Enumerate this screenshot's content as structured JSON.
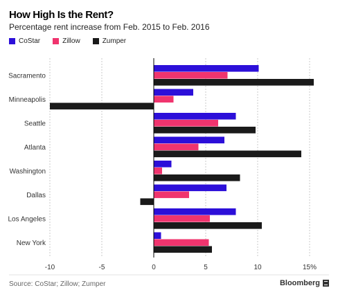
{
  "chart_data": {
    "type": "bar",
    "orientation": "horizontal",
    "title": "How High Is the Rent?",
    "subtitle": "Percentage rent increase from Feb. 2015 to Feb. 2016",
    "categories": [
      "Sacramento",
      "Minneapolis",
      "Seattle",
      "Atlanta",
      "Washington",
      "Dallas",
      "Los Angeles",
      "New York"
    ],
    "series": [
      {
        "name": "CoStar",
        "color": "#2c0fd9",
        "values": [
          10.1,
          3.8,
          7.9,
          6.8,
          1.7,
          7.0,
          7.9,
          0.7
        ]
      },
      {
        "name": "Zillow",
        "color": "#f0346e",
        "values": [
          7.1,
          1.9,
          6.2,
          4.3,
          0.8,
          3.4,
          5.4,
          5.3
        ]
      },
      {
        "name": "Zumper",
        "color": "#1a1a1a",
        "values": [
          15.4,
          -10.0,
          9.8,
          14.2,
          8.3,
          -1.3,
          10.4,
          5.6
        ]
      }
    ],
    "xlim": [
      -10,
      15
    ],
    "xticks": [
      -10,
      -5,
      0,
      5,
      10,
      15
    ],
    "xtick_labels": [
      "-10",
      "-5",
      "0",
      "5",
      "10",
      "15%"
    ],
    "grid": "vertical dashed",
    "legend_position": "top-left",
    "xlabel": "",
    "ylabel": ""
  },
  "footer": {
    "source": "Source: CoStar; Zillow; Zumper",
    "brand": "Bloomberg"
  }
}
